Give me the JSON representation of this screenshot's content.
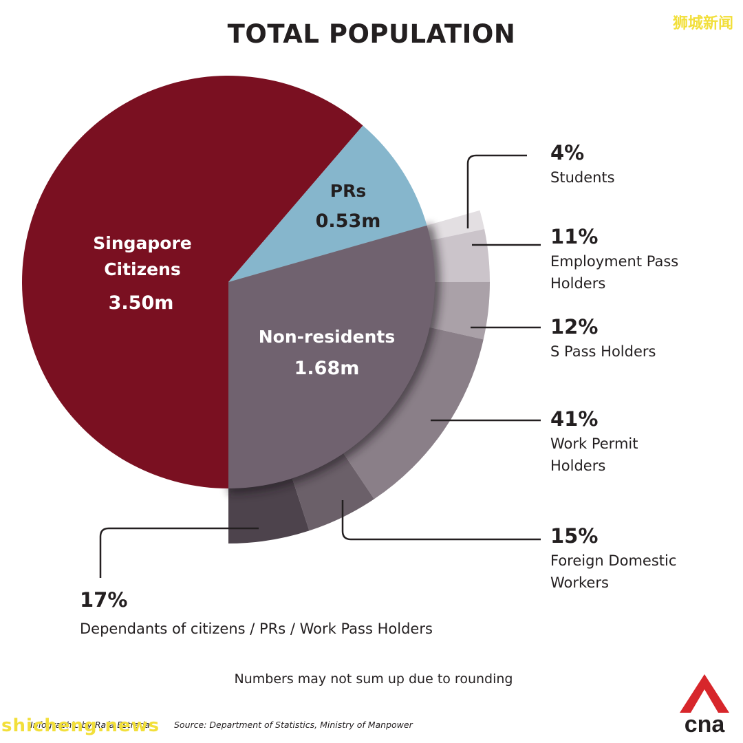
{
  "header": {
    "title": "TOTAL POPULATION"
  },
  "watermarks": {
    "cn": "狮城新闻",
    "en": "shicheng.news"
  },
  "chart_data": {
    "type": "pie",
    "title": "TOTAL POPULATION",
    "slices": [
      {
        "label_line1": "Singapore",
        "label_line2": "Citizens",
        "value_label": "3.50m",
        "value": 3.5,
        "color": "#7a1021"
      },
      {
        "label_line1": "PRs",
        "value_label": "0.53m",
        "value": 0.53,
        "color": "#86b6cc"
      },
      {
        "label_line1": "Non-residents",
        "value_label": "1.68m",
        "value": 1.68,
        "color": "#70626f"
      }
    ],
    "breakdown": {
      "parent": "Non-residents",
      "items": [
        {
          "pct": "4%",
          "label": "Students",
          "value": 4,
          "color": "#e3dfe2"
        },
        {
          "pct": "11%",
          "label": "Employment Pass Holders",
          "value": 11,
          "color": "#cbc4ca"
        },
        {
          "pct": "12%",
          "label": "S Pass Holders",
          "value": 12,
          "color": "#aaa1a8"
        },
        {
          "pct": "41%",
          "label": "Work Permit Holders",
          "value": 41,
          "color": "#8a7f88"
        },
        {
          "pct": "15%",
          "label": "Foreign Domestic Workers",
          "value": 15,
          "color": "#6b6069"
        },
        {
          "pct": "17%",
          "label": "Dependants of citizens / PRs / Work Pass Holders",
          "value": 17,
          "color": "#4d434c"
        }
      ]
    },
    "legend": "none"
  },
  "footer": {
    "note": "Numbers may not sum up due to rounding",
    "credit": "Infographic by Rafa Estrada",
    "source": "Source: Department of Statistics, Ministry of Manpower",
    "logo_text": "cna",
    "logo_color": "#d7262b"
  }
}
